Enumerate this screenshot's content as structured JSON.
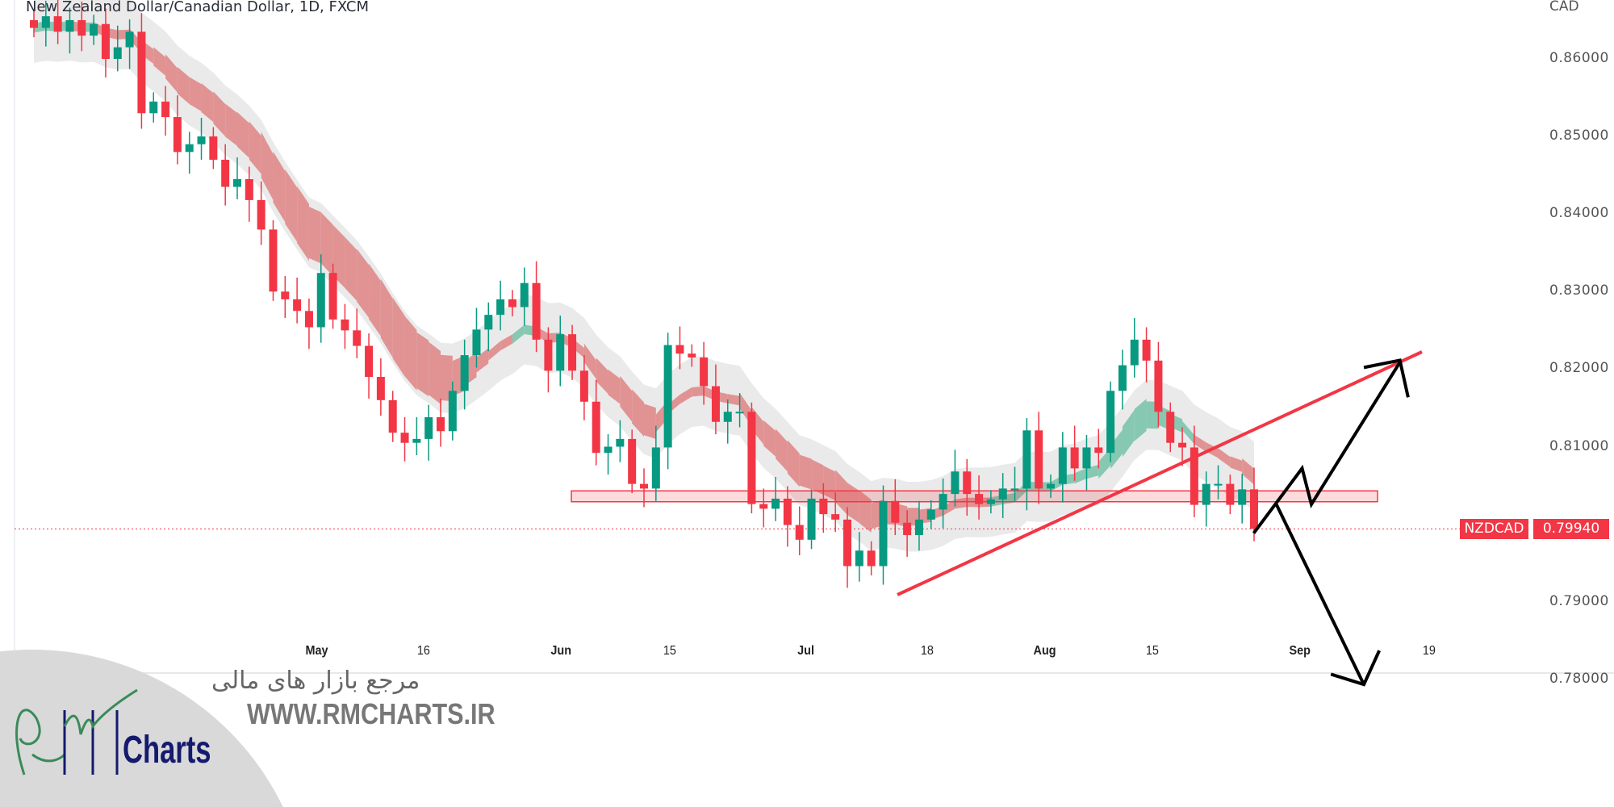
{
  "header": {
    "title": "New Zealand Dollar/Canadian Dollar, 1D, FXCM",
    "currency": "CAD"
  },
  "price_label": {
    "symbol": "NZDCAD",
    "value": "0.79940"
  },
  "watermark": {
    "persian": "مرجع بازار های مالی",
    "url": "WWW.RMCHARTS.IR",
    "logo_text": "Charts"
  },
  "colors": {
    "up": "#089981",
    "down": "#f23645",
    "trendline": "#f23645",
    "zone": "#f23645",
    "ribbon_down": "#e08a8a",
    "ribbon_up": "#7cc4ac",
    "envelope": "#e6e6e6"
  },
  "chart_data": {
    "type": "candlestick",
    "title": "New Zealand Dollar/Canadian Dollar, 1D, FXCM",
    "ylabel": "CAD",
    "ylim": [
      0.7735,
      0.8695
    ],
    "y_ticks": [
      "0.86000",
      "0.85000",
      "0.84000",
      "0.83000",
      "0.82000",
      "0.81000",
      "0.79000",
      "0.78000"
    ],
    "x_ticks": [
      {
        "label": "May",
        "major": true
      },
      {
        "label": "16",
        "major": false
      },
      {
        "label": "Jun",
        "major": true
      },
      {
        "label": "15",
        "major": false
      },
      {
        "label": "Jul",
        "major": true
      },
      {
        "label": "18",
        "major": false
      },
      {
        "label": "Aug",
        "major": true
      },
      {
        "label": "15",
        "major": false
      },
      {
        "label": "Sep",
        "major": true
      },
      {
        "label": "19",
        "major": false
      }
    ],
    "last_price": 0.7994,
    "grid": false,
    "close": [
      0.864,
      0.8655,
      0.8635,
      0.865,
      0.863,
      0.8645,
      0.86,
      0.8615,
      0.8635,
      0.853,
      0.8545,
      0.8525,
      0.848,
      0.849,
      0.85,
      0.847,
      0.8435,
      0.8445,
      0.8418,
      0.838,
      0.83,
      0.829,
      0.8275,
      0.8254,
      0.8324,
      0.8264,
      0.825,
      0.823,
      0.819,
      0.816,
      0.8118,
      0.8105,
      0.811,
      0.8138,
      0.812,
      0.8172,
      0.8218,
      0.8251,
      0.827,
      0.829,
      0.828,
      0.8311,
      0.8238,
      0.8198,
      0.8245,
      0.8198,
      0.8158,
      0.8092,
      0.81,
      0.811,
      0.8052,
      0.8046,
      0.8099,
      0.8231,
      0.822,
      0.8215,
      0.8178,
      0.8132,
      0.8145,
      0.8145,
      0.8026,
      0.802,
      0.8033,
      0.7999,
      0.798,
      0.8033,
      0.8013,
      0.8006,
      0.7946,
      0.7966,
      0.7946,
      0.803,
      0.8002,
      0.7986,
      0.8006,
      0.8019,
      0.8039,
      0.8068,
      0.8039,
      0.8026,
      0.8032,
      0.8046,
      0.8046,
      0.8121,
      0.8046,
      0.8052,
      0.8099,
      0.8072,
      0.8099,
      0.8092,
      0.8172,
      0.8205,
      0.8238,
      0.8211,
      0.8145,
      0.8105,
      0.8099,
      0.8025,
      0.8052,
      0.8052,
      0.8025,
      0.8045,
      0.7994
    ]
  }
}
